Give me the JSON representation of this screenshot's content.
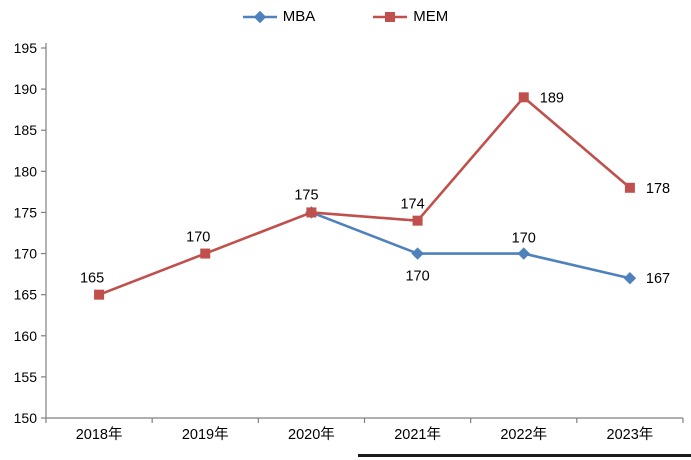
{
  "chart_data": {
    "type": "line",
    "title": "",
    "xlabel": "",
    "ylabel": "",
    "categories": [
      "2018年",
      "2019年",
      "2020年",
      "2021年",
      "2022年",
      "2023年"
    ],
    "series": [
      {
        "name": "MBA",
        "color": "#4f81bd",
        "marker": "diamond",
        "values": [
          null,
          null,
          175,
          170,
          170,
          167
        ],
        "label_offsets": [
          null,
          null,
          null,
          [
            0,
            27
          ],
          [
            0,
            -11
          ],
          [
            16,
            5
          ]
        ]
      },
      {
        "name": "MEM",
        "color": "#c0504d",
        "marker": "square",
        "values": [
          165,
          170,
          175,
          174,
          189,
          178
        ],
        "label_offsets": [
          [
            -7,
            -12
          ],
          [
            -7,
            -12
          ],
          [
            -5,
            -13
          ],
          [
            -5,
            -12
          ],
          [
            16,
            5
          ],
          [
            16,
            5
          ]
        ]
      }
    ],
    "ylim": [
      150,
      195
    ],
    "ytick_step": 5,
    "grid": false,
    "legend_position": "top"
  },
  "style": {
    "axis_color": "#808080",
    "tick_label_color": "#000000",
    "data_label_color": "#000000",
    "background": "#ffffff"
  }
}
